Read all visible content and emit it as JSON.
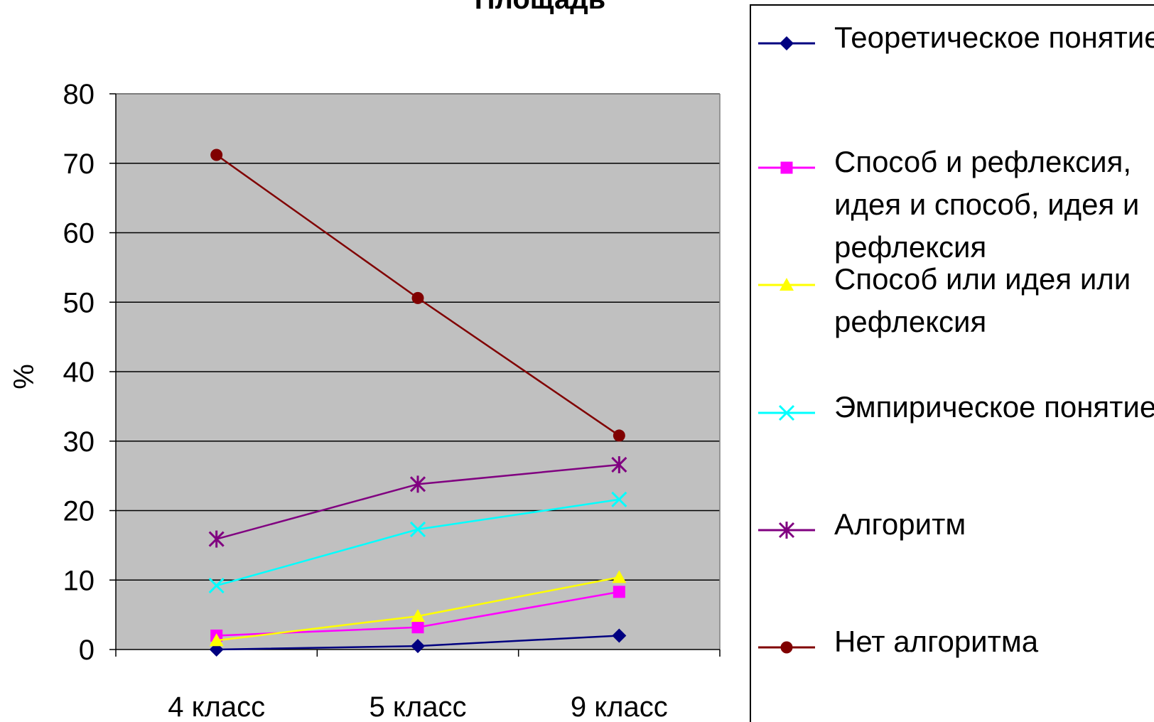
{
  "chart_data": {
    "type": "line",
    "title": "Площадь",
    "xlabel": "",
    "ylabel": "%",
    "categories": [
      "4 класс",
      "5 класс",
      "9 класс"
    ],
    "ylim": [
      0,
      80
    ],
    "yticks": [
      0,
      10,
      20,
      30,
      40,
      50,
      60,
      70,
      80
    ],
    "grid": true,
    "plot_background": "#c0c0c0",
    "legend_position": "right",
    "series": [
      {
        "name": "Теоретическое понятие",
        "values": [
          0,
          0.5,
          2
        ],
        "color": "#000080",
        "marker": "diamond"
      },
      {
        "name": "Способ и рефлексия, идея и способ, идея и рефлексия",
        "values": [
          2,
          3.2,
          8.3
        ],
        "color": "#ff00ff",
        "marker": "square"
      },
      {
        "name": "Способ или идея или рефлексия",
        "values": [
          1.3,
          4.8,
          10.4
        ],
        "color": "#ffff00",
        "marker": "triangle"
      },
      {
        "name": "Эмпирическое понятие",
        "values": [
          9.2,
          17.3,
          21.6
        ],
        "color": "#00ffff",
        "marker": "x"
      },
      {
        "name": "Алгоритм",
        "values": [
          15.9,
          23.8,
          26.6
        ],
        "color": "#800080",
        "marker": "star"
      },
      {
        "name": "Нет  алгоритма",
        "values": [
          71.2,
          50.6,
          30.8
        ],
        "color": "#800000",
        "marker": "circle"
      }
    ]
  }
}
